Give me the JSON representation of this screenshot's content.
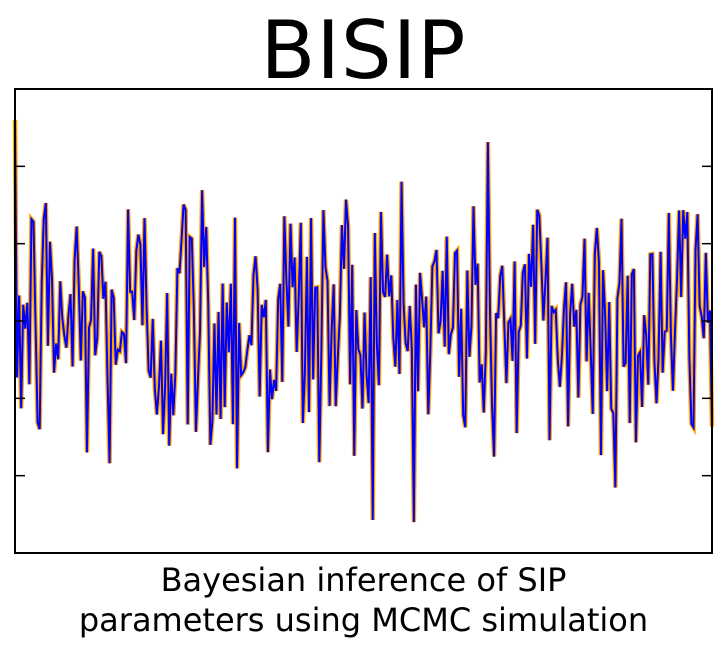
{
  "title": "BISIP",
  "caption": {
    "line1": "Bayesian inference of SIP",
    "line2": "parameters using MCMC simulation"
  },
  "colors": {
    "background_line": "#FFA500",
    "foreground_line": "#0000FF",
    "axes": "#000000"
  },
  "chart_data": {
    "type": "line",
    "title": "BISIP",
    "xlabel": "",
    "ylabel": "",
    "grid": false,
    "legend": "none",
    "x_ticks_shown": false,
    "y_tick_marks": 5,
    "y_tick_labels": false,
    "ylim": [
      -3,
      3
    ],
    "n_points": 340,
    "series": [
      {
        "color": "#FFA500",
        "style": "thick",
        "seed": 12345,
        "sigma": 1.0
      },
      {
        "color": "#0000FF",
        "style": "thin",
        "seed": 12345,
        "sigma": 1.0
      }
    ]
  }
}
